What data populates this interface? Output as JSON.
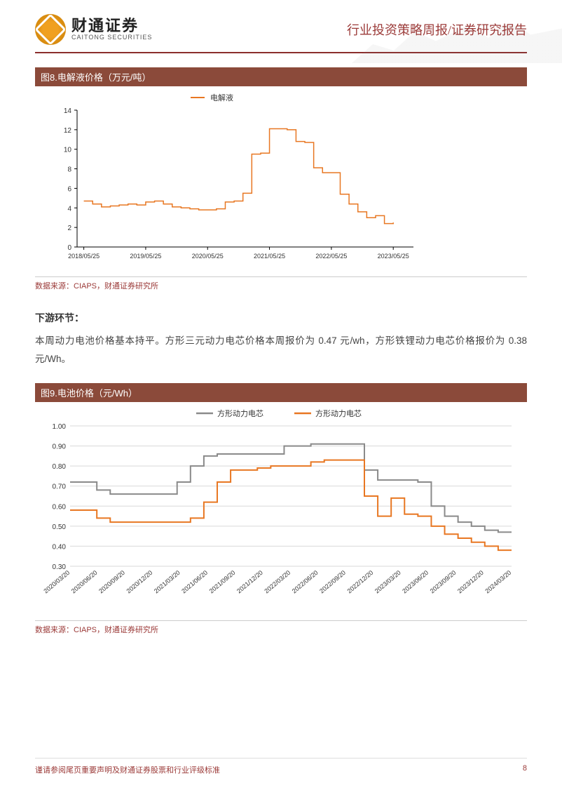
{
  "header": {
    "logo_cn": "财通证券",
    "logo_en": "CAITONG SECURITIES",
    "title": "行业投资策略周报/证券研究报告"
  },
  "chart8": {
    "type": "line",
    "title": "图8.电解液价格（万元/吨）",
    "legend": [
      "电解液"
    ],
    "legend_colors": [
      "#e87722"
    ],
    "source": "数据来源：CIAPS，财通证券研究所",
    "xlabels": [
      "2018/05/25",
      "2019/05/25",
      "2020/05/25",
      "2021/05/25",
      "2022/05/25",
      "2023/05/25"
    ],
    "ylim": [
      0,
      14
    ],
    "yticks": [
      0,
      2,
      4,
      6,
      8,
      10,
      12,
      14
    ],
    "background_color": "#ffffff",
    "axis_color": "#000000",
    "line_width": 1.5,
    "series": [
      {
        "name": "电解液",
        "color": "#e87722",
        "values": [
          4.7,
          4.4,
          4.1,
          4.2,
          4.3,
          4.4,
          4.3,
          4.6,
          4.7,
          4.4,
          4.1,
          4.0,
          3.9,
          3.8,
          3.8,
          3.9,
          4.6,
          4.7,
          5.5,
          9.5,
          9.6,
          12.1,
          12.1,
          12.0,
          10.8,
          10.7,
          8.1,
          7.6,
          7.6,
          5.4,
          4.4,
          3.6,
          3.0,
          3.2,
          2.4,
          2.5
        ]
      }
    ]
  },
  "section": {
    "heading": "下游环节：",
    "body": "本周动力电池价格基本持平。方形三元动力电芯价格本周报价为 0.47 元/wh，方形铁锂动力电芯价格报价为 0.38 元/Wh。"
  },
  "chart9": {
    "type": "line",
    "title": "图9.电池价格（元/Wh）",
    "legend": [
      "方形动力电芯",
      "方形动力电芯"
    ],
    "legend_colors": [
      "#8a8a8a",
      "#e87722"
    ],
    "source": "数据来源：CIAPS，财通证券研究所",
    "xlabels": [
      "2020/03/20",
      "2020/06/20",
      "2020/09/20",
      "2020/12/20",
      "2021/03/20",
      "2021/06/20",
      "2021/09/20",
      "2021/12/20",
      "2022/03/20",
      "2022/06/20",
      "2022/09/20",
      "2022/12/20",
      "2023/03/20",
      "2023/06/20",
      "2023/09/20",
      "2023/12/20",
      "2024/03/20"
    ],
    "ylim": [
      0.3,
      1.0
    ],
    "yticks": [
      0.3,
      0.4,
      0.5,
      0.6,
      0.7,
      0.8,
      0.9,
      1.0
    ],
    "background_color": "#ffffff",
    "grid_color": "#d9d9d9",
    "line_width": 2,
    "series": [
      {
        "name": "方形动力电芯(灰)",
        "color": "#8a8a8a",
        "values": [
          0.72,
          0.72,
          0.68,
          0.66,
          0.66,
          0.66,
          0.66,
          0.66,
          0.72,
          0.8,
          0.85,
          0.86,
          0.86,
          0.86,
          0.86,
          0.86,
          0.9,
          0.9,
          0.91,
          0.91,
          0.91,
          0.91,
          0.78,
          0.73,
          0.73,
          0.73,
          0.72,
          0.6,
          0.55,
          0.52,
          0.5,
          0.48,
          0.47,
          0.47
        ]
      },
      {
        "name": "方形动力电芯(橙)",
        "color": "#e87722",
        "values": [
          0.58,
          0.58,
          0.54,
          0.52,
          0.52,
          0.52,
          0.52,
          0.52,
          0.52,
          0.54,
          0.62,
          0.72,
          0.78,
          0.78,
          0.79,
          0.8,
          0.8,
          0.8,
          0.82,
          0.83,
          0.83,
          0.83,
          0.65,
          0.55,
          0.64,
          0.56,
          0.55,
          0.5,
          0.46,
          0.44,
          0.42,
          0.4,
          0.38,
          0.38
        ]
      }
    ]
  },
  "footer": {
    "disclaimer": "谨请参阅尾页重要声明及财通证券股票和行业评级标准",
    "page": "8"
  }
}
